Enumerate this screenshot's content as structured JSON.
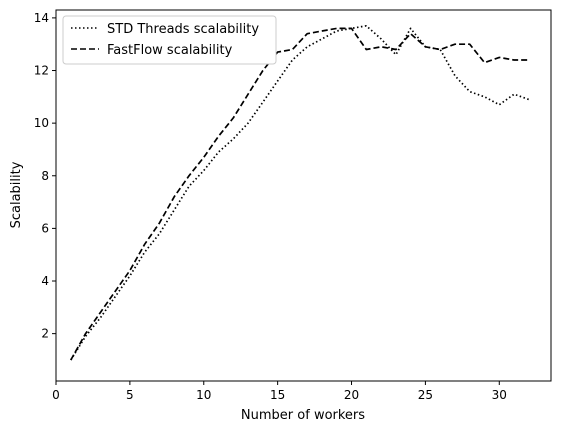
{
  "chart_data": {
    "type": "line",
    "title": "",
    "xlabel": "Number of workers",
    "ylabel": "Scalability",
    "xlim": [
      0,
      33.5
    ],
    "ylim": [
      0.2,
      14.3
    ],
    "xticks": [
      0,
      5,
      10,
      15,
      20,
      25,
      30
    ],
    "yticks": [
      2,
      4,
      6,
      8,
      10,
      12,
      14
    ],
    "grid": false,
    "legend_position": "top-left",
    "x": [
      1,
      2,
      3,
      4,
      5,
      6,
      7,
      8,
      9,
      10,
      11,
      12,
      13,
      14,
      15,
      16,
      17,
      18,
      19,
      20,
      21,
      22,
      23,
      24,
      25,
      26,
      27,
      28,
      29,
      30,
      31,
      32
    ],
    "series": [
      {
        "name": "STD Threads scalability",
        "line_style": "dotted",
        "color": "#000000",
        "values": [
          1.0,
          1.9,
          2.6,
          3.4,
          4.2,
          5.1,
          5.8,
          6.7,
          7.6,
          8.2,
          8.9,
          9.4,
          10.0,
          10.8,
          11.6,
          12.4,
          12.9,
          13.2,
          13.5,
          13.6,
          13.7,
          13.2,
          12.6,
          13.6,
          12.9,
          12.8,
          11.8,
          11.2,
          11.0,
          10.7,
          11.1,
          10.9
        ]
      },
      {
        "name": "FastFlow scalability",
        "line_style": "dashed",
        "color": "#000000",
        "values": [
          1.0,
          2.0,
          2.8,
          3.6,
          4.4,
          5.4,
          6.2,
          7.2,
          8.0,
          8.7,
          9.5,
          10.2,
          11.1,
          12.0,
          12.7,
          12.8,
          13.4,
          13.5,
          13.6,
          13.6,
          12.8,
          12.9,
          12.8,
          13.4,
          12.9,
          12.8,
          13.0,
          13.0,
          12.3,
          12.5,
          12.4,
          12.4
        ]
      }
    ]
  }
}
